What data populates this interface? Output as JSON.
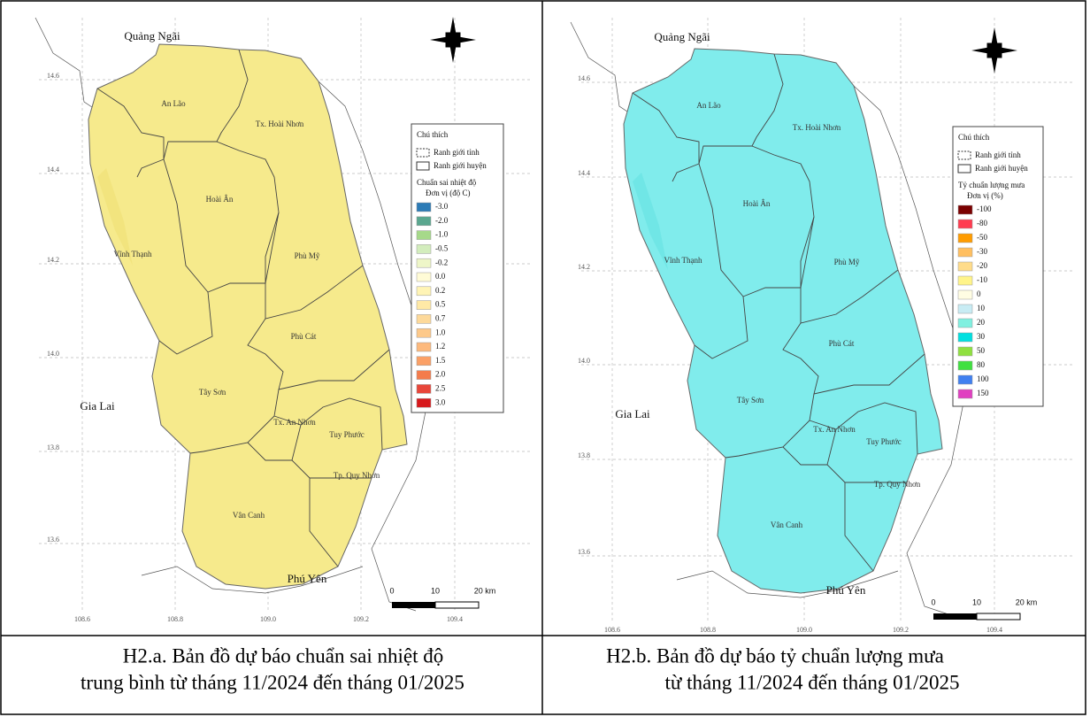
{
  "panels": [
    {
      "place_labels": [
        "Quảng Ngãi",
        "An Lão",
        "Tx. Hoài Nhơn",
        "Hoài Ân",
        "Vĩnh Thạnh",
        "Phù Mỹ",
        "Phù Cát",
        "Tây Sơn",
        "Gia Lai",
        "Tx. An Nhơn",
        "Tuy Phước",
        "Tp. Quy Nhơn",
        "Vân Canh",
        "Phú Yên"
      ],
      "lat_labels": [
        "14.6",
        "14.4",
        "14.2",
        "14.0",
        "13.8",
        "13.6"
      ],
      "lon_labels": [
        "108.6",
        "108.8",
        "109.0",
        "109.2",
        "109.4"
      ],
      "legend": {
        "title": "Chú thích",
        "boundaries": [
          "Ranh giới tỉnh",
          "Ranh giới huyện"
        ],
        "variable": "Chuẩn sai nhiệt độ",
        "unit": "Đơn vị (độ C)",
        "classes": [
          {
            "label": "-3.0",
            "color": "#2c7bb6"
          },
          {
            "label": "-2.0",
            "color": "#5aa78f"
          },
          {
            "label": "-1.0",
            "color": "#a6d98a"
          },
          {
            "label": "-0.5",
            "color": "#d3edbd"
          },
          {
            "label": "-0.2",
            "color": "#eef6c8"
          },
          {
            "label": "0.0",
            "color": "#fffbd6"
          },
          {
            "label": "0.2",
            "color": "#fff4b5"
          },
          {
            "label": "0.5",
            "color": "#ffe9a6"
          },
          {
            "label": "0.7",
            "color": "#fdd99a"
          },
          {
            "label": "1.0",
            "color": "#fdc98a"
          },
          {
            "label": "1.2",
            "color": "#fdb97c"
          },
          {
            "label": "1.5",
            "color": "#fba066"
          },
          {
            "label": "2.0",
            "color": "#f47c4c"
          },
          {
            "label": "2.5",
            "color": "#e8463a"
          },
          {
            "label": "3.0",
            "color": "#d7191c"
          }
        ]
      },
      "scale_labels": [
        "0",
        "10",
        "20 km"
      ],
      "caption": [
        "H2.a. Bản đồ dự báo chuẩn sai nhiệt độ",
        "trung bình từ tháng 11/2024 đến tháng 01/2025"
      ]
    },
    {
      "place_labels": [
        "Quảng Ngãi",
        "An Lão",
        "Tx. Hoài Nhơn",
        "Hoài Ân",
        "Vĩnh Thạnh",
        "Phù Mỹ",
        "Phù Cát",
        "Tây Sơn",
        "Gia Lai",
        "Tx. An Nhơn",
        "Tuy Phước",
        "Tp. Quy Nhơn",
        "Vân Canh",
        "Phú Yên"
      ],
      "lat_labels": [
        "14.6",
        "14.4",
        "14.2",
        "14.0",
        "13.8",
        "13.6"
      ],
      "lon_labels": [
        "108.6",
        "108.8",
        "109.0",
        "109.2",
        "109.4"
      ],
      "legend": {
        "title": "Chú thích",
        "boundaries": [
          "Ranh giới tỉnh",
          "Ranh giới huyện"
        ],
        "variable": "Tỷ chuẩn lượng mưa",
        "unit": "Đơn vị (%)",
        "classes": [
          {
            "label": "-100",
            "color": "#7a0000"
          },
          {
            "label": "-80",
            "color": "#ff3c50"
          },
          {
            "label": "-50",
            "color": "#ff9c00"
          },
          {
            "label": "-30",
            "color": "#ffbf60"
          },
          {
            "label": "-20",
            "color": "#ffdc8a"
          },
          {
            "label": "-10",
            "color": "#fff48a"
          },
          {
            "label": "0",
            "color": "#fffde3"
          },
          {
            "label": "10",
            "color": "#c8ecf4"
          },
          {
            "label": "20",
            "color": "#80f0e0"
          },
          {
            "label": "30",
            "color": "#00e0e0"
          },
          {
            "label": "50",
            "color": "#90e040"
          },
          {
            "label": "80",
            "color": "#40e040"
          },
          {
            "label": "100",
            "color": "#4080f0"
          },
          {
            "label": "150",
            "color": "#e040c0"
          }
        ]
      },
      "scale_labels": [
        "0",
        "10",
        "20 km"
      ],
      "caption": [
        "H2.b. Bản đồ dự báo tỷ chuẩn lượng mưa",
        "từ tháng 11/2024 đến tháng 01/2025"
      ]
    }
  ]
}
